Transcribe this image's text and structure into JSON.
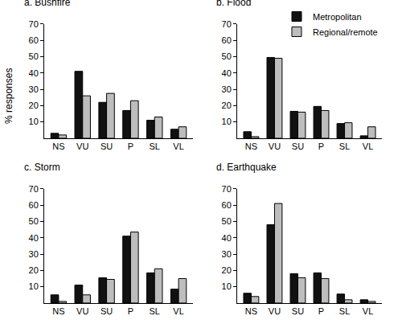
{
  "chart_data": [
    {
      "type": "bar",
      "title": "a. Bushfire",
      "ylabel": "% responses",
      "categories": [
        "NS",
        "VU",
        "SU",
        "P",
        "SL",
        "VL"
      ],
      "series": [
        {
          "name": "Metropolitan",
          "color": "#111111",
          "values": [
            3,
            41,
            22,
            17,
            11,
            5.5
          ]
        },
        {
          "name": "Regional/remote",
          "color": "#bdbdbd",
          "values": [
            2,
            26,
            27.5,
            23,
            13,
            7
          ]
        }
      ],
      "ylim": [
        0,
        70
      ],
      "yticks": [
        10,
        20,
        30,
        40,
        50,
        60,
        70
      ],
      "grid": false
    },
    {
      "type": "bar",
      "title": "b. Flood",
      "legend": "upper right",
      "categories": [
        "NS",
        "VU",
        "SU",
        "P",
        "SL",
        "VL"
      ],
      "series": [
        {
          "name": "Metropolitan",
          "color": "#111111",
          "values": [
            4,
            49.5,
            16.5,
            19.5,
            9,
            1.5
          ]
        },
        {
          "name": "Regional/remote",
          "color": "#bdbdbd",
          "values": [
            1,
            49,
            16,
            17,
            9.5,
            7
          ]
        }
      ],
      "ylim": [
        0,
        70
      ],
      "yticks": [
        10,
        20,
        30,
        40,
        50,
        60,
        70
      ],
      "grid": false
    },
    {
      "type": "bar",
      "title": "c. Storm",
      "categories": [
        "NS",
        "VU",
        "SU",
        "P",
        "SL",
        "VL"
      ],
      "series": [
        {
          "name": "Metropolitan",
          "color": "#111111",
          "values": [
            5,
            11,
            15.5,
            41,
            18.5,
            8.5
          ]
        },
        {
          "name": "Regional/remote",
          "color": "#bdbdbd",
          "values": [
            1,
            5,
            14.5,
            43.5,
            21,
            15
          ]
        }
      ],
      "ylim": [
        0,
        70
      ],
      "yticks": [
        10,
        20,
        30,
        40,
        50,
        60,
        70
      ],
      "grid": false
    },
    {
      "type": "bar",
      "title": "d. Earthquake",
      "categories": [
        "NS",
        "VU",
        "SU",
        "P",
        "SL",
        "VL"
      ],
      "series": [
        {
          "name": "Metropolitan",
          "color": "#111111",
          "values": [
            6,
            48,
            18,
            18.5,
            5.5,
            2
          ]
        },
        {
          "name": "Regional/remote",
          "color": "#bdbdbd",
          "values": [
            4,
            61,
            15.5,
            15,
            2,
            1
          ]
        }
      ],
      "ylim": [
        0,
        70
      ],
      "yticks": [
        10,
        20,
        30,
        40,
        50,
        60,
        70
      ],
      "grid": false
    }
  ]
}
